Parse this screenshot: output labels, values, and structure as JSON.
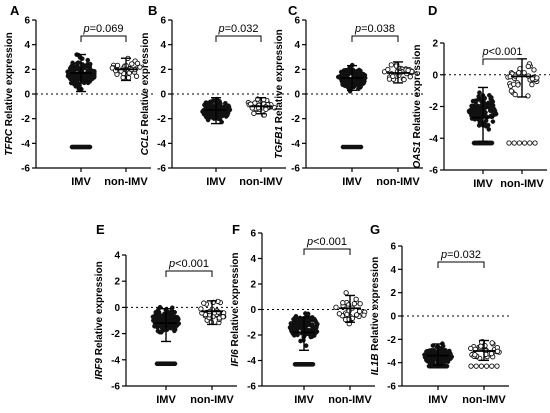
{
  "chart_data": [
    {
      "panel": "A",
      "type": "scatter",
      "gene": "TFRC",
      "ylabel_suffix": " Relative expression",
      "ylim": [
        -6,
        6
      ],
      "yticks": [
        "-6",
        "-4",
        "-2",
        "0",
        "2",
        "4",
        "6"
      ],
      "categories": [
        "IMV",
        "non-IMV"
      ],
      "p_prefix": "p",
      "p_value": "=0.069",
      "groups": [
        {
          "name": "IMV",
          "filled": true,
          "mean": 1.7,
          "sd_low": 0.2,
          "sd_high": 3.2,
          "floor_count": 16,
          "floor_value": -4.3,
          "n": 140,
          "center": 1.6,
          "spread": 1.3
        },
        {
          "name": "non-IMV",
          "filled": false,
          "mean": 2.0,
          "sd_low": 1.1,
          "sd_high": 2.9,
          "floor_count": 0,
          "floor_value": -4.3,
          "n": 34,
          "center": 2.0,
          "spread": 0.9
        }
      ]
    },
    {
      "panel": "B",
      "type": "scatter",
      "gene": "CCL5",
      "ylabel_suffix": " Relative expression",
      "ylim": [
        -6,
        6
      ],
      "yticks": [
        "-6",
        "-4",
        "-2",
        "0",
        "2",
        "4",
        "6"
      ],
      "categories": [
        "IMV",
        "non-IMV"
      ],
      "p_prefix": "p",
      "p_value": "=0.032",
      "groups": [
        {
          "name": "IMV",
          "filled": true,
          "mean": -1.3,
          "sd_low": -2.4,
          "sd_high": -0.3,
          "floor_count": 0,
          "floor_value": -4.3,
          "n": 140,
          "center": -1.3,
          "spread": 1.0
        },
        {
          "name": "non-IMV",
          "filled": false,
          "mean": -1.0,
          "sd_low": -1.6,
          "sd_high": -0.3,
          "floor_count": 0,
          "floor_value": -4.3,
          "n": 34,
          "center": -1.0,
          "spread": 0.7
        }
      ]
    },
    {
      "panel": "C",
      "type": "scatter",
      "gene": "TGFB1",
      "ylabel_suffix": " Relative expression",
      "ylim": [
        -6,
        6
      ],
      "yticks": [
        "-6",
        "-4",
        "-2",
        "0",
        "2",
        "4",
        "6"
      ],
      "categories": [
        "IMV",
        "non-IMV"
      ],
      "p_prefix": "p",
      "p_value": "=0.038",
      "groups": [
        {
          "name": "IMV",
          "filled": true,
          "mean": 1.3,
          "sd_low": 0.3,
          "sd_high": 2.3,
          "floor_count": 10,
          "floor_value": -4.3,
          "n": 140,
          "center": 1.3,
          "spread": 1.0
        },
        {
          "name": "non-IMV",
          "filled": false,
          "mean": 1.7,
          "sd_low": 0.9,
          "sd_high": 2.6,
          "floor_count": 0,
          "floor_value": -4.3,
          "n": 34,
          "center": 1.7,
          "spread": 0.9
        }
      ]
    },
    {
      "panel": "D",
      "type": "scatter",
      "gene": "OAS1",
      "ylabel_suffix": " Relative expression",
      "ylim": [
        -6,
        2
      ],
      "yticks": [
        "-6",
        "-4",
        "-2",
        "0",
        "2"
      ],
      "categories": [
        "IMV",
        "non-IMV"
      ],
      "p_prefix": "p",
      "p_value": "<0.001",
      "groups": [
        {
          "name": "IMV",
          "filled": true,
          "mean": -2.7,
          "sd_low": -4.2,
          "sd_high": -0.8,
          "floor_count": 30,
          "floor_value": -4.3,
          "n": 120,
          "center": -2.3,
          "spread": 1.2
        },
        {
          "name": "non-IMV",
          "filled": false,
          "mean": -0.1,
          "sd_low": -1.4,
          "sd_high": 1.0,
          "floor_count": 6,
          "floor_value": -4.3,
          "n": 34,
          "center": -0.2,
          "spread": 1.3
        }
      ]
    },
    {
      "panel": "E",
      "type": "scatter",
      "gene": "IRF9",
      "ylabel_suffix": " Relative expression",
      "ylim": [
        -6,
        4
      ],
      "yticks": [
        "-6",
        "-4",
        "-2",
        "0",
        "2",
        "4"
      ],
      "categories": [
        "IMV",
        "non-IMV"
      ],
      "p_prefix": "p",
      "p_value": "<0.001",
      "groups": [
        {
          "name": "IMV",
          "filled": true,
          "mean": -1.2,
          "sd_low": -2.6,
          "sd_high": -0.1,
          "floor_count": 22,
          "floor_value": -4.3,
          "n": 140,
          "center": -1.0,
          "spread": 1.1
        },
        {
          "name": "non-IMV",
          "filled": false,
          "mean": -0.3,
          "sd_low": -1.3,
          "sd_high": 0.5,
          "floor_count": 0,
          "floor_value": -4.3,
          "n": 34,
          "center": -0.3,
          "spread": 1.0
        }
      ]
    },
    {
      "panel": "F",
      "type": "scatter",
      "gene": "IFI6",
      "ylabel_suffix": " Relative expression",
      "ylim": [
        -6,
        6
      ],
      "yticks": [
        "-6",
        "-4",
        "-2",
        "0",
        "2",
        "4",
        "6"
      ],
      "categories": [
        "IMV",
        "non-IMV"
      ],
      "p_prefix": "p",
      "p_value": "<0.001",
      "groups": [
        {
          "name": "IMV",
          "filled": true,
          "mean": -1.8,
          "sd_low": -3.2,
          "sd_high": -0.6,
          "floor_count": 24,
          "floor_value": -4.3,
          "n": 130,
          "center": -1.4,
          "spread": 1.2
        },
        {
          "name": "non-IMV",
          "filled": false,
          "mean": 0.1,
          "sd_low": -1.0,
          "sd_high": 1.1,
          "floor_count": 0,
          "floor_value": -4.3,
          "n": 34,
          "center": 0.0,
          "spread": 1.6
        }
      ]
    },
    {
      "panel": "G",
      "type": "scatter",
      "gene": "IL1B",
      "ylabel_suffix": " Relative expression",
      "ylim": [
        -6,
        6
      ],
      "yticks": [
        "-6",
        "-4",
        "-2",
        "0",
        "2",
        "4",
        "6"
      ],
      "categories": [
        "IMV",
        "non-IMV"
      ],
      "p_prefix": "p",
      "p_value": "=0.032",
      "groups": [
        {
          "name": "IMV",
          "filled": true,
          "mean": -3.4,
          "sd_low": -4.2,
          "sd_high": -2.4,
          "floor_count": 30,
          "floor_value": -4.3,
          "n": 140,
          "center": -3.4,
          "spread": 0.9
        },
        {
          "name": "non-IMV",
          "filled": false,
          "mean": -3.0,
          "sd_low": -3.8,
          "sd_high": -2.1,
          "floor_count": 6,
          "floor_value": -4.3,
          "n": 34,
          "center": -3.0,
          "spread": 0.8
        }
      ]
    }
  ]
}
